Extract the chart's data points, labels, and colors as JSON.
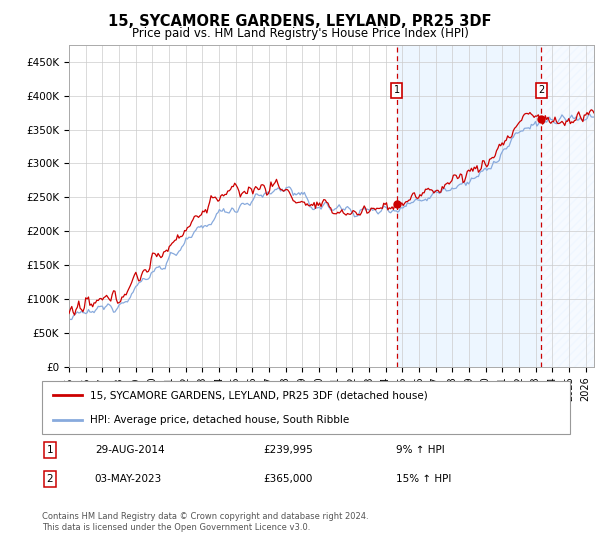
{
  "title": "15, SYCAMORE GARDENS, LEYLAND, PR25 3DF",
  "subtitle": "Price paid vs. HM Land Registry's House Price Index (HPI)",
  "ylim": [
    0,
    475000
  ],
  "yticks": [
    0,
    50000,
    100000,
    150000,
    200000,
    250000,
    300000,
    350000,
    400000,
    450000
  ],
  "ytick_labels": [
    "£0",
    "£50K",
    "£100K",
    "£150K",
    "£200K",
    "£250K",
    "£300K",
    "£350K",
    "£400K",
    "£450K"
  ],
  "hpi_color": "#88aadd",
  "price_color": "#cc0000",
  "shade_color": "#ddeeff",
  "marker1_date_x": 2014.66,
  "marker1_y": 239995,
  "marker2_date_x": 2023.34,
  "marker2_y": 365000,
  "legend_line1": "15, SYCAMORE GARDENS, LEYLAND, PR25 3DF (detached house)",
  "legend_line2": "HPI: Average price, detached house, South Ribble",
  "marker1_date_str": "29-AUG-2014",
  "marker1_price_str": "£239,995",
  "marker1_hpi_str": "9% ↑ HPI",
  "marker2_date_str": "03-MAY-2023",
  "marker2_price_str": "£365,000",
  "marker2_hpi_str": "15% ↑ HPI",
  "footnote": "Contains HM Land Registry data © Crown copyright and database right 2024.\nThis data is licensed under the Open Government Licence v3.0.",
  "xmin": 1995,
  "xmax": 2026.5,
  "shade_start": 2014.66,
  "shade_end": 2023.34,
  "hatch_start": 2023.34,
  "hatch_end": 2026.5
}
